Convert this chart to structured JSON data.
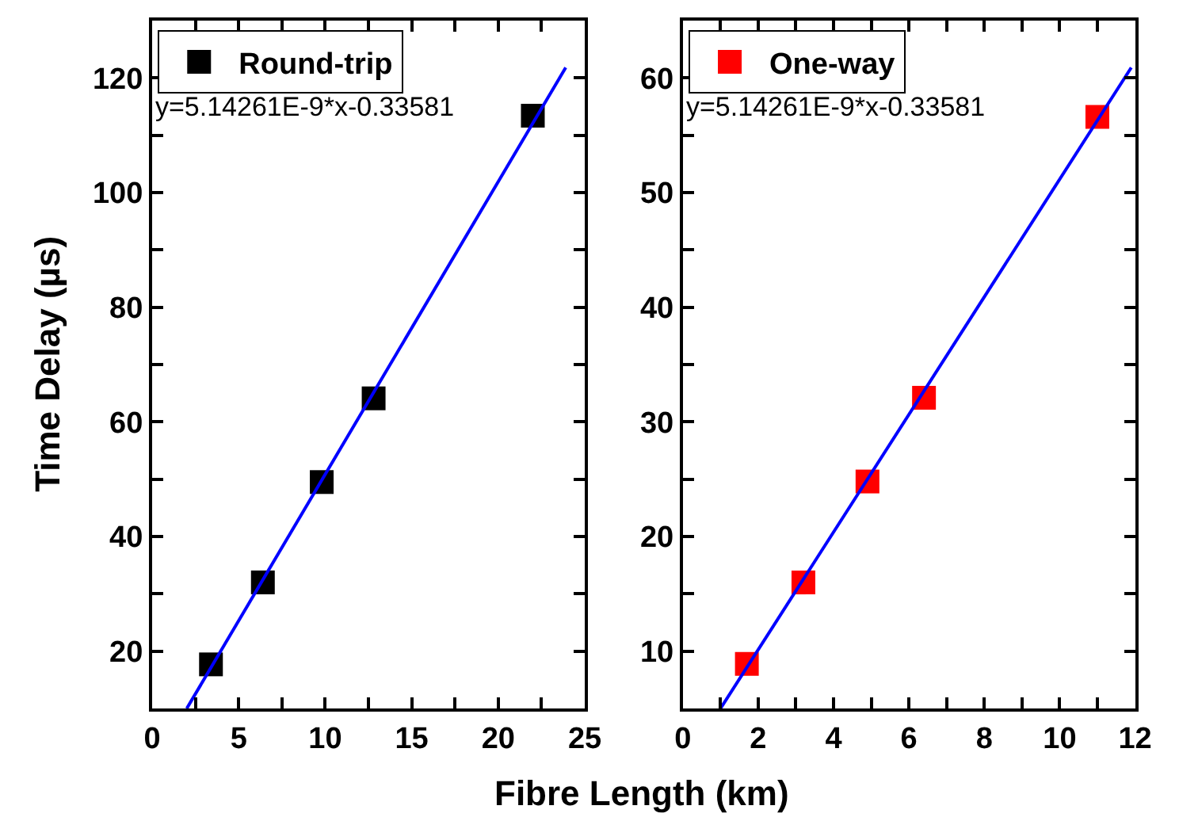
{
  "chart_data": [
    {
      "type": "scatter",
      "xlabel": "Fibre Length (km)",
      "ylabel": "Time Delay (µs)",
      "xlim": [
        0,
        25
      ],
      "ylim": [
        10,
        130
      ],
      "xticks": [
        0,
        {
          "value": 2.5,
          "label": null
        },
        5,
        {
          "value": 7.5,
          "label": null
        },
        10,
        {
          "value": 12.5,
          "label": null
        },
        15,
        {
          "value": 17.5,
          "label": null
        },
        20,
        {
          "value": 22.5,
          "label": null
        },
        25
      ],
      "yticks": [
        20,
        {
          "value": 30,
          "label": null
        },
        40,
        {
          "value": 50,
          "label": null
        },
        60,
        {
          "value": 70,
          "label": null
        },
        80,
        {
          "value": 90,
          "label": null
        },
        100,
        {
          "value": 110,
          "label": null
        },
        120
      ],
      "legend": "top left",
      "annotations": [
        "y=5.14261E-9*x-0.33581"
      ],
      "series": [
        {
          "name": "Round-trip",
          "marker": "square",
          "color": "#000000",
          "x": [
            3.4,
            6.4,
            9.8,
            12.8,
            22.0
          ],
          "values": [
            17.7,
            32,
            49.5,
            64.1,
            113.4
          ]
        },
        {
          "type": "line",
          "color": "#0000ff",
          "x": [
            2.0,
            23.9
          ],
          "values": [
            10,
            121.8
          ]
        }
      ]
    },
    {
      "type": "scatter",
      "xlim": [
        0,
        12
      ],
      "ylim": [
        5,
        65
      ],
      "xticks": [
        0,
        {
          "value": 1,
          "label": null
        },
        2,
        {
          "value": 3,
          "label": null
        },
        4,
        {
          "value": 5,
          "label": null
        },
        6,
        {
          "value": 7,
          "label": null
        },
        8,
        {
          "value": 9,
          "label": null
        },
        10,
        {
          "value": 11,
          "label": null
        },
        12
      ],
      "yticks": [
        10,
        {
          "value": 15,
          "label": null
        },
        20,
        {
          "value": 25,
          "label": null
        },
        30,
        {
          "value": 35,
          "label": null
        },
        40,
        {
          "value": 45,
          "label": null
        },
        50,
        {
          "value": 55,
          "label": null
        },
        60
      ],
      "legend": "top left",
      "annotations": [
        "y=5.14261E-9*x-0.33581"
      ],
      "series": [
        {
          "name": "One-way",
          "marker": "square",
          "color": "#ff0000",
          "x": [
            1.7,
            3.2,
            4.9,
            6.4,
            11.0
          ],
          "values": [
            8.9,
            16.0,
            24.8,
            32.1,
            56.6
          ]
        },
        {
          "type": "line",
          "color": "#0000ff",
          "x": [
            1.0,
            11.9
          ],
          "values": [
            5,
            60.9
          ]
        }
      ]
    }
  ]
}
